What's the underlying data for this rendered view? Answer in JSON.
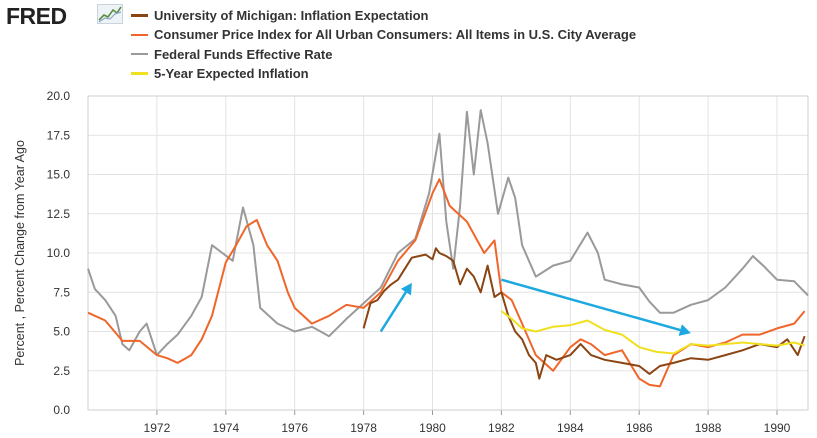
{
  "brand": {
    "logo_text": "FRED"
  },
  "chart_data": {
    "type": "line",
    "title": "",
    "xlabel": "",
    "ylabel": "Percent , Percent Change from Year Ago",
    "xlim": [
      1970.0,
      1990.9
    ],
    "ylim": [
      0,
      20
    ],
    "grid": true,
    "legend_position": "top-left",
    "x_ticks": [
      1972,
      1974,
      1976,
      1978,
      1980,
      1982,
      1984,
      1986,
      1988,
      1990
    ],
    "y_ticks": [
      "0.0",
      "2.5",
      "5.0",
      "7.5",
      "10.0",
      "12.5",
      "15.0",
      "17.5",
      "20.0"
    ],
    "series": [
      {
        "name": "University of Michigan: Inflation Expectation",
        "color": "#8b4513",
        "points": [
          [
            1978.0,
            5.2
          ],
          [
            1978.2,
            6.8
          ],
          [
            1978.4,
            7.0
          ],
          [
            1978.6,
            7.6
          ],
          [
            1978.8,
            8.0
          ],
          [
            1979.0,
            8.3
          ],
          [
            1979.2,
            9.0
          ],
          [
            1979.4,
            9.7
          ],
          [
            1979.6,
            9.8
          ],
          [
            1979.8,
            9.9
          ],
          [
            1980.0,
            9.6
          ],
          [
            1980.1,
            10.3
          ],
          [
            1980.2,
            10.0
          ],
          [
            1980.4,
            9.8
          ],
          [
            1980.6,
            9.5
          ],
          [
            1980.8,
            8.0
          ],
          [
            1981.0,
            9.0
          ],
          [
            1981.2,
            8.5
          ],
          [
            1981.4,
            7.5
          ],
          [
            1981.6,
            9.2
          ],
          [
            1981.8,
            7.2
          ],
          [
            1982.0,
            7.5
          ],
          [
            1982.2,
            6.0
          ],
          [
            1982.4,
            5.0
          ],
          [
            1982.6,
            4.5
          ],
          [
            1982.8,
            3.5
          ],
          [
            1983.0,
            3.0
          ],
          [
            1983.1,
            2.0
          ],
          [
            1983.3,
            3.5
          ],
          [
            1983.6,
            3.2
          ],
          [
            1984.0,
            3.5
          ],
          [
            1984.3,
            4.2
          ],
          [
            1984.6,
            3.5
          ],
          [
            1985.0,
            3.2
          ],
          [
            1985.5,
            3.0
          ],
          [
            1986.0,
            2.8
          ],
          [
            1986.3,
            2.3
          ],
          [
            1986.6,
            2.8
          ],
          [
            1987.0,
            3.0
          ],
          [
            1987.5,
            3.3
          ],
          [
            1988.0,
            3.2
          ],
          [
            1988.5,
            3.5
          ],
          [
            1989.0,
            3.8
          ],
          [
            1989.5,
            4.2
          ],
          [
            1990.0,
            4.0
          ],
          [
            1990.3,
            4.5
          ],
          [
            1990.6,
            3.5
          ],
          [
            1990.8,
            4.7
          ]
        ]
      },
      {
        "name": "Consumer Price Index for All Urban Consumers: All Items in U.S. City Average",
        "color": "#f0662a",
        "points": [
          [
            1970.0,
            6.2
          ],
          [
            1970.5,
            5.7
          ],
          [
            1971.0,
            4.4
          ],
          [
            1971.5,
            4.4
          ],
          [
            1972.0,
            3.5
          ],
          [
            1972.3,
            3.3
          ],
          [
            1972.6,
            3.0
          ],
          [
            1973.0,
            3.5
          ],
          [
            1973.3,
            4.5
          ],
          [
            1973.6,
            6.0
          ],
          [
            1974.0,
            9.4
          ],
          [
            1974.3,
            10.5
          ],
          [
            1974.6,
            11.7
          ],
          [
            1974.9,
            12.1
          ],
          [
            1975.2,
            10.5
          ],
          [
            1975.5,
            9.5
          ],
          [
            1975.8,
            7.5
          ],
          [
            1976.0,
            6.5
          ],
          [
            1976.5,
            5.5
          ],
          [
            1977.0,
            6.0
          ],
          [
            1977.5,
            6.7
          ],
          [
            1978.0,
            6.5
          ],
          [
            1978.5,
            7.5
          ],
          [
            1979.0,
            9.5
          ],
          [
            1979.5,
            10.8
          ],
          [
            1980.0,
            13.8
          ],
          [
            1980.2,
            14.7
          ],
          [
            1980.5,
            13.0
          ],
          [
            1981.0,
            12.0
          ],
          [
            1981.5,
            10.0
          ],
          [
            1981.8,
            10.8
          ],
          [
            1982.0,
            7.5
          ],
          [
            1982.3,
            7.0
          ],
          [
            1982.6,
            5.5
          ],
          [
            1983.0,
            3.5
          ],
          [
            1983.5,
            2.5
          ],
          [
            1984.0,
            4.0
          ],
          [
            1984.3,
            4.5
          ],
          [
            1984.6,
            4.2
          ],
          [
            1985.0,
            3.5
          ],
          [
            1985.5,
            3.8
          ],
          [
            1986.0,
            2.0
          ],
          [
            1986.3,
            1.6
          ],
          [
            1986.6,
            1.5
          ],
          [
            1987.0,
            3.5
          ],
          [
            1987.5,
            4.2
          ],
          [
            1988.0,
            4.0
          ],
          [
            1988.5,
            4.3
          ],
          [
            1989.0,
            4.8
          ],
          [
            1989.5,
            4.8
          ],
          [
            1990.0,
            5.2
          ],
          [
            1990.5,
            5.5
          ],
          [
            1990.8,
            6.3
          ]
        ]
      },
      {
        "name": "Federal Funds Effective Rate",
        "color": "#9a9a9a",
        "points": [
          [
            1970.0,
            9.0
          ],
          [
            1970.2,
            7.7
          ],
          [
            1970.5,
            7.0
          ],
          [
            1970.8,
            6.0
          ],
          [
            1971.0,
            4.2
          ],
          [
            1971.2,
            3.8
          ],
          [
            1971.5,
            5.0
          ],
          [
            1971.7,
            5.5
          ],
          [
            1972.0,
            3.5
          ],
          [
            1972.3,
            4.2
          ],
          [
            1972.6,
            4.8
          ],
          [
            1973.0,
            6.0
          ],
          [
            1973.3,
            7.2
          ],
          [
            1973.6,
            10.5
          ],
          [
            1973.9,
            10.0
          ],
          [
            1974.2,
            9.5
          ],
          [
            1974.5,
            12.9
          ],
          [
            1974.8,
            10.5
          ],
          [
            1975.0,
            6.5
          ],
          [
            1975.5,
            5.5
          ],
          [
            1976.0,
            5.0
          ],
          [
            1976.5,
            5.3
          ],
          [
            1977.0,
            4.7
          ],
          [
            1977.5,
            5.8
          ],
          [
            1978.0,
            6.8
          ],
          [
            1978.5,
            7.8
          ],
          [
            1979.0,
            10.0
          ],
          [
            1979.5,
            10.9
          ],
          [
            1979.9,
            13.8
          ],
          [
            1980.2,
            17.6
          ],
          [
            1980.4,
            12.0
          ],
          [
            1980.6,
            9.0
          ],
          [
            1980.8,
            13.0
          ],
          [
            1981.0,
            19.0
          ],
          [
            1981.2,
            15.0
          ],
          [
            1981.4,
            19.1
          ],
          [
            1981.6,
            17.0
          ],
          [
            1981.9,
            12.5
          ],
          [
            1982.2,
            14.8
          ],
          [
            1982.4,
            13.5
          ],
          [
            1982.6,
            10.5
          ],
          [
            1982.9,
            9.0
          ],
          [
            1983.0,
            8.5
          ],
          [
            1983.5,
            9.2
          ],
          [
            1984.0,
            9.5
          ],
          [
            1984.5,
            11.3
          ],
          [
            1984.8,
            10.0
          ],
          [
            1985.0,
            8.3
          ],
          [
            1985.5,
            8.0
          ],
          [
            1986.0,
            7.8
          ],
          [
            1986.3,
            6.9
          ],
          [
            1986.6,
            6.2
          ],
          [
            1987.0,
            6.2
          ],
          [
            1987.5,
            6.7
          ],
          [
            1988.0,
            7.0
          ],
          [
            1988.5,
            7.8
          ],
          [
            1989.0,
            9.0
          ],
          [
            1989.3,
            9.8
          ],
          [
            1989.6,
            9.2
          ],
          [
            1990.0,
            8.3
          ],
          [
            1990.5,
            8.2
          ],
          [
            1990.9,
            7.3
          ]
        ]
      },
      {
        "name": "5-Year Expected Inflation",
        "color": "#f0e020",
        "points": [
          [
            1982.0,
            6.3
          ],
          [
            1982.3,
            5.8
          ],
          [
            1982.6,
            5.2
          ],
          [
            1983.0,
            5.0
          ],
          [
            1983.5,
            5.3
          ],
          [
            1984.0,
            5.4
          ],
          [
            1984.5,
            5.7
          ],
          [
            1985.0,
            5.1
          ],
          [
            1985.5,
            4.8
          ],
          [
            1986.0,
            4.0
          ],
          [
            1986.5,
            3.7
          ],
          [
            1987.0,
            3.6
          ],
          [
            1987.5,
            4.2
          ],
          [
            1988.0,
            4.1
          ],
          [
            1988.5,
            4.2
          ],
          [
            1989.0,
            4.3
          ],
          [
            1989.5,
            4.2
          ],
          [
            1990.0,
            4.1
          ],
          [
            1990.5,
            4.3
          ],
          [
            1990.8,
            4.1
          ]
        ]
      }
    ],
    "annotations": [
      {
        "type": "arrow",
        "color": "#1da9e0",
        "from": [
          1978.5,
          5.0
        ],
        "to": [
          1979.4,
          8.1
        ]
      },
      {
        "type": "arrow",
        "color": "#1da9e0",
        "from": [
          1982.0,
          8.3
        ],
        "to": [
          1987.5,
          4.9
        ]
      }
    ]
  }
}
